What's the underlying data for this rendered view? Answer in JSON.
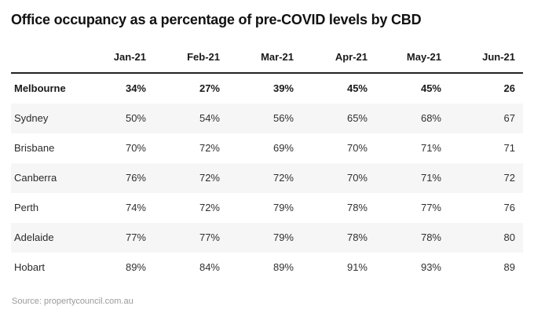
{
  "title": "Office occupancy as a percentage of pre-COVID levels by CBD",
  "source_note": "Source: propertycouncil.com.au",
  "colors": {
    "background": "#ffffff",
    "title_text": "#111111",
    "header_text": "#1a1a1a",
    "body_text": "#303030",
    "stripe_row": "#f6f6f6",
    "header_border": "#232323",
    "source_text": "#9a9a9a"
  },
  "chart_data": {
    "type": "table",
    "title": "Office occupancy as a percentage of pre-COVID levels by CBD",
    "columns": [
      "Jan-21",
      "Feb-21",
      "Mar-21",
      "Apr-21",
      "May-21",
      "Jun-21"
    ],
    "row_header_label": "",
    "rows": [
      {
        "label": "Melbourne",
        "values": [
          "34%",
          "27%",
          "39%",
          "45%",
          "45%",
          "26"
        ],
        "emphasis": true
      },
      {
        "label": "Sydney",
        "values": [
          "50%",
          "54%",
          "56%",
          "65%",
          "68%",
          "67"
        ],
        "emphasis": false
      },
      {
        "label": "Brisbane",
        "values": [
          "70%",
          "72%",
          "69%",
          "70%",
          "71%",
          "71"
        ],
        "emphasis": false
      },
      {
        "label": "Canberra",
        "values": [
          "76%",
          "72%",
          "72%",
          "70%",
          "71%",
          "72"
        ],
        "emphasis": false
      },
      {
        "label": "Perth",
        "values": [
          "74%",
          "72%",
          "79%",
          "78%",
          "77%",
          "76"
        ],
        "emphasis": false
      },
      {
        "label": "Adelaide",
        "values": [
          "77%",
          "77%",
          "79%",
          "78%",
          "78%",
          "80"
        ],
        "emphasis": false
      },
      {
        "label": "Hobart",
        "values": [
          "89%",
          "84%",
          "89%",
          "91%",
          "93%",
          "89"
        ],
        "emphasis": false
      }
    ],
    "layout": {
      "striped": true,
      "striped_row_indices": [
        1,
        3,
        5
      ],
      "value_alignment": "right",
      "emphasized_row": "Melbourne",
      "grid": "none",
      "header_rule": "2px solid dark"
    },
    "source": "Source: propertycouncil.com.au"
  }
}
